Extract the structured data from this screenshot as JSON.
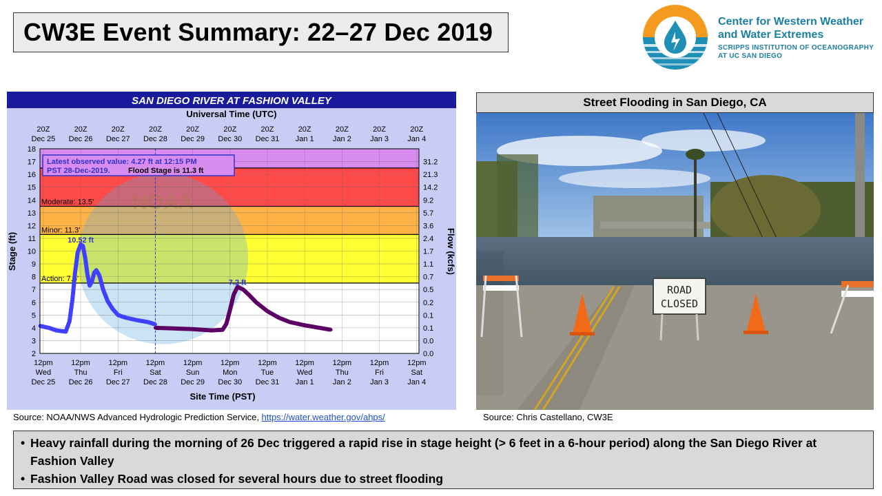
{
  "slide": {
    "title": "CW3E Event Summary: 22–27 Dec 2019",
    "logo_line1": "Center for Western Weather",
    "logo_line2": "and Water Extremes",
    "logo_sub1": "SCRIPPS INSTITUTION OF OCEANOGRAPHY",
    "logo_sub2": "AT UC SAN DIEGO",
    "source_left_prefix": "Source: NOAA/NWS Advanced Hydrologic Prediction Service, ",
    "source_left_link": "https://water.weather.gov/ahps/",
    "photo_title": "Street Flooding in San Diego, CA",
    "source_right": "Source: Chris Castellano, CW3E",
    "bullet1": "Heavy rainfall during the morning of 26 Dec triggered a rapid rise in stage height (> 6 feet in a 6-hour period) along the San Diego River at Fashion Valley",
    "bullet2": "Fashion Valley Road was closed for several hours due to street flooding",
    "sign_line1": "ROAD",
    "sign_line2": "CLOSED",
    "watermark": "NOAA",
    "colors": {
      "title_bg": "#ececec",
      "header_bar": "#1a1a9c",
      "logo_blue": "#1b7fa3",
      "logo_orange": "#f39a1f"
    }
  },
  "chart_data": {
    "type": "line",
    "title": "SAN DIEGO RIVER AT FASHION VALLEY",
    "top_axis_title": "Universal Time (UTC)",
    "xlabel": "Site Time (PST)",
    "ylabel": "Stage (ft)",
    "y2label": "Flow (kcfs)",
    "ylim": [
      2,
      18
    ],
    "yticks": [
      2,
      3,
      4,
      5,
      6,
      7,
      8,
      9,
      10,
      11,
      12,
      13,
      14,
      15,
      16,
      17,
      18
    ],
    "flow_ticks": [
      {
        "stage": 2,
        "label": "0.0"
      },
      {
        "stage": 3,
        "label": "0.0"
      },
      {
        "stage": 4,
        "label": "0.1"
      },
      {
        "stage": 5,
        "label": "0.1"
      },
      {
        "stage": 6,
        "label": "0.2"
      },
      {
        "stage": 7,
        "label": "0.5"
      },
      {
        "stage": 8,
        "label": "0.7"
      },
      {
        "stage": 9,
        "label": "1.1"
      },
      {
        "stage": 10,
        "label": "1.7"
      },
      {
        "stage": 11,
        "label": "2.4"
      },
      {
        "stage": 12,
        "label": "3.6"
      },
      {
        "stage": 13,
        "label": "5.7"
      },
      {
        "stage": 14,
        "label": "9.2"
      },
      {
        "stage": 15,
        "label": "14.2"
      },
      {
        "stage": 16,
        "label": "21.3"
      },
      {
        "stage": 17,
        "label": "31.2"
      }
    ],
    "xlim": [
      -0.09,
      10.06
    ],
    "bottom_ticks": [
      {
        "t": "12pm",
        "d": "Wed",
        "n": "Dec 25"
      },
      {
        "t": "12pm",
        "d": "Thu",
        "n": "Dec 26"
      },
      {
        "t": "12pm",
        "d": "Fri",
        "n": "Dec 27"
      },
      {
        "t": "12pm",
        "d": "Sat",
        "n": "Dec 28"
      },
      {
        "t": "12pm",
        "d": "Sun",
        "n": "Dec 29"
      },
      {
        "t": "12pm",
        "d": "Mon",
        "n": "Dec 30"
      },
      {
        "t": "12pm",
        "d": "Tue",
        "n": "Dec 31"
      },
      {
        "t": "12pm",
        "d": "Wed",
        "n": "Jan 1"
      },
      {
        "t": "12pm",
        "d": "Thu",
        "n": "Jan 2"
      },
      {
        "t": "12pm",
        "d": "Fri",
        "n": "Jan 3"
      },
      {
        "t": "12pm",
        "d": "Sat",
        "n": "Jan 4"
      }
    ],
    "top_ticks": [
      {
        "t": "20Z",
        "n": "Dec 25"
      },
      {
        "t": "20Z",
        "n": "Dec 26"
      },
      {
        "t": "20Z",
        "n": "Dec 27"
      },
      {
        "t": "20Z",
        "n": "Dec 28"
      },
      {
        "t": "20Z",
        "n": "Dec 29"
      },
      {
        "t": "20Z",
        "n": "Dec 30"
      },
      {
        "t": "20Z",
        "n": "Dec 31"
      },
      {
        "t": "20Z",
        "n": "Jan 1"
      },
      {
        "t": "20Z",
        "n": "Jan 2"
      },
      {
        "t": "20Z",
        "n": "Jan 3"
      },
      {
        "t": "20Z",
        "n": "Jan 4"
      }
    ],
    "bands": [
      {
        "from": 2,
        "to": 7.5,
        "color": "#ffffff"
      },
      {
        "from": 7.5,
        "to": 11.3,
        "color": "#ffff33"
      },
      {
        "from": 11.3,
        "to": 13.5,
        "color": "#ffb347"
      },
      {
        "from": 13.5,
        "to": 16.5,
        "color": "#ff4a4a"
      },
      {
        "from": 16.5,
        "to": 18,
        "color": "#d98cf0"
      }
    ],
    "thresholds": [
      {
        "label": "Action: 7.5'",
        "value": 7.5
      },
      {
        "label": "Minor: 11.3'",
        "value": 11.3
      },
      {
        "label": "Moderate: 13.5'",
        "value": 13.5
      }
    ],
    "annotation_line1": "Latest observed value: 4.27 ft at 12:15 PM",
    "annotation_line2a": "PST 28-Dec-2019.",
    "annotation_line2b": "Flood Stage is 11.3 ft",
    "current_time_marker": 3.0,
    "peak_labels": [
      {
        "text": "10.52 ft",
        "x": 1.0,
        "y": 10.52
      },
      {
        "text": "7.2 ft",
        "x": 5.2,
        "y": 7.2
      }
    ],
    "series": [
      {
        "name": "Observed",
        "color": "#4040ff",
        "values": [
          [
            -0.09,
            4.15
          ],
          [
            0.15,
            4.0
          ],
          [
            0.35,
            3.8
          ],
          [
            0.6,
            3.7
          ],
          [
            0.7,
            4.5
          ],
          [
            0.78,
            6.2
          ],
          [
            0.85,
            8.3
          ],
          [
            0.92,
            9.9
          ],
          [
            1.0,
            10.52
          ],
          [
            1.06,
            10.4
          ],
          [
            1.12,
            9.5
          ],
          [
            1.18,
            8.2
          ],
          [
            1.24,
            7.3
          ],
          [
            1.3,
            7.6
          ],
          [
            1.36,
            8.3
          ],
          [
            1.42,
            8.5
          ],
          [
            1.5,
            8.1
          ],
          [
            1.6,
            7.0
          ],
          [
            1.72,
            6.1
          ],
          [
            1.85,
            5.5
          ],
          [
            2.0,
            5.0
          ],
          [
            2.2,
            4.8
          ],
          [
            2.5,
            4.6
          ],
          [
            2.8,
            4.45
          ],
          [
            3.0,
            4.27
          ]
        ]
      },
      {
        "name": "Later observed",
        "color": "#5c0066",
        "values": [
          [
            3.0,
            4.0
          ],
          [
            3.5,
            3.95
          ],
          [
            4.0,
            3.9
          ],
          [
            4.5,
            3.8
          ],
          [
            4.8,
            3.85
          ],
          [
            4.9,
            4.3
          ],
          [
            5.0,
            5.4
          ],
          [
            5.1,
            6.6
          ],
          [
            5.2,
            7.2
          ],
          [
            5.35,
            7.0
          ],
          [
            5.5,
            6.6
          ],
          [
            5.7,
            6.0
          ],
          [
            6.0,
            5.3
          ],
          [
            6.3,
            4.8
          ],
          [
            6.6,
            4.45
          ],
          [
            7.0,
            4.2
          ],
          [
            7.4,
            4.0
          ],
          [
            7.7,
            3.85
          ]
        ]
      }
    ]
  }
}
